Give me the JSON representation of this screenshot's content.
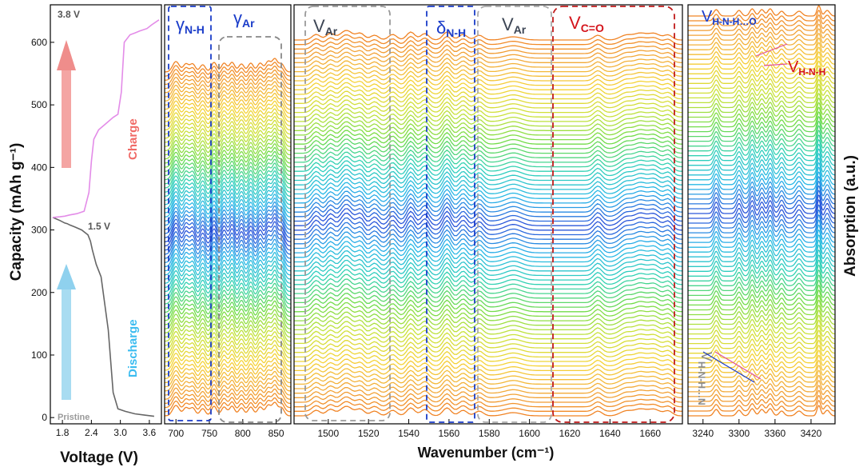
{
  "chart_data": [
    {
      "type": "line",
      "panel": "voltage-capacity",
      "xlabel": "Voltage (V)",
      "ylabel": "Capacity (mAh g⁻¹)",
      "xlim": [
        1.55,
        3.85
      ],
      "ylim": [
        -10,
        660
      ],
      "xticks": [
        "1.8",
        "2.4",
        "3.0",
        "3.6"
      ],
      "yticks": [
        "0",
        "100",
        "200",
        "300",
        "400",
        "500",
        "600"
      ],
      "annotations": {
        "top_voltage": "3.8 V",
        "mid_voltage": "1.5 V",
        "pristine": "Pristine",
        "charge": "Charge",
        "discharge": "Discharge"
      },
      "series": [
        {
          "name": "Discharge",
          "color": "#666666",
          "x": [
            3.7,
            3.5,
            3.3,
            3.1,
            2.95,
            2.85,
            2.75,
            2.6,
            2.5,
            2.42,
            2.38,
            2.33,
            2.2,
            2.05,
            1.95,
            1.9,
            1.85,
            1.75,
            1.6
          ],
          "y": [
            2,
            4,
            6,
            10,
            14,
            40,
            140,
            225,
            245,
            268,
            282,
            292,
            300,
            305,
            308,
            310,
            311,
            315,
            320
          ]
        },
        {
          "name": "Charge",
          "color": "#e38ce8",
          "x": [
            1.6,
            1.75,
            1.85,
            1.95,
            2.1,
            2.25,
            2.35,
            2.4,
            2.45,
            2.55,
            2.7,
            2.85,
            2.95,
            3.02,
            3.08,
            3.2,
            3.3,
            3.4,
            3.55,
            3.65,
            3.8
          ],
          "y": [
            320,
            321,
            322,
            324,
            326,
            330,
            360,
            410,
            445,
            460,
            470,
            480,
            485,
            520,
            600,
            612,
            615,
            618,
            622,
            628,
            636
          ]
        }
      ]
    },
    {
      "type": "heatmap",
      "panel": "in-situ-ftir",
      "xlabel": "Wavenumber (cm⁻¹)",
      "ylabel": "Absorption (a.u.)",
      "subpanels": [
        {
          "name": "range-1",
          "xlim": [
            683,
            872
          ],
          "xticks": [
            700,
            750,
            800,
            850
          ]
        },
        {
          "name": "range-2",
          "xlim": [
            1483,
            1676
          ],
          "xticks": [
            1500,
            1520,
            1540,
            1560,
            1580,
            1600,
            1620,
            1640,
            1660
          ]
        },
        {
          "name": "range-3",
          "xlim": [
            3215,
            3460
          ],
          "xticks": [
            3240,
            3300,
            3360,
            3420
          ]
        }
      ],
      "band_labels": [
        {
          "sym": "γ",
          "sub": "N-H",
          "color": "#1a3cc9"
        },
        {
          "sym": "γ",
          "sub": "Ar",
          "color": "#1a3cc9"
        },
        {
          "sym": "V",
          "sub": "Ar",
          "color": "#3c4554"
        },
        {
          "sym": "δ",
          "sub": "N-H",
          "color": "#1a3cc9"
        },
        {
          "sym": "V",
          "sub": "Ar",
          "color": "#3c4554"
        },
        {
          "sym": "V",
          "sub": "C=O",
          "color": "#d4141b"
        },
        {
          "sym": "V",
          "sub": "H-N-H…O",
          "color": "#1a3cc9"
        },
        {
          "sym": "V",
          "sub": "H-N-H",
          "color": "#d4141b"
        },
        {
          "sym": "V",
          "sub": "H-N-H…N",
          "color": "#8a8a8a"
        }
      ],
      "colormap": [
        "#e8321c",
        "#f07a1e",
        "#f2a93a",
        "#f5d336",
        "#c9e23a",
        "#6fdc4a",
        "#2fd0b8",
        "#28b6e8",
        "#2b4fd9"
      ],
      "n_spectra": 84,
      "discharge_end_fraction": 0.5
    }
  ]
}
